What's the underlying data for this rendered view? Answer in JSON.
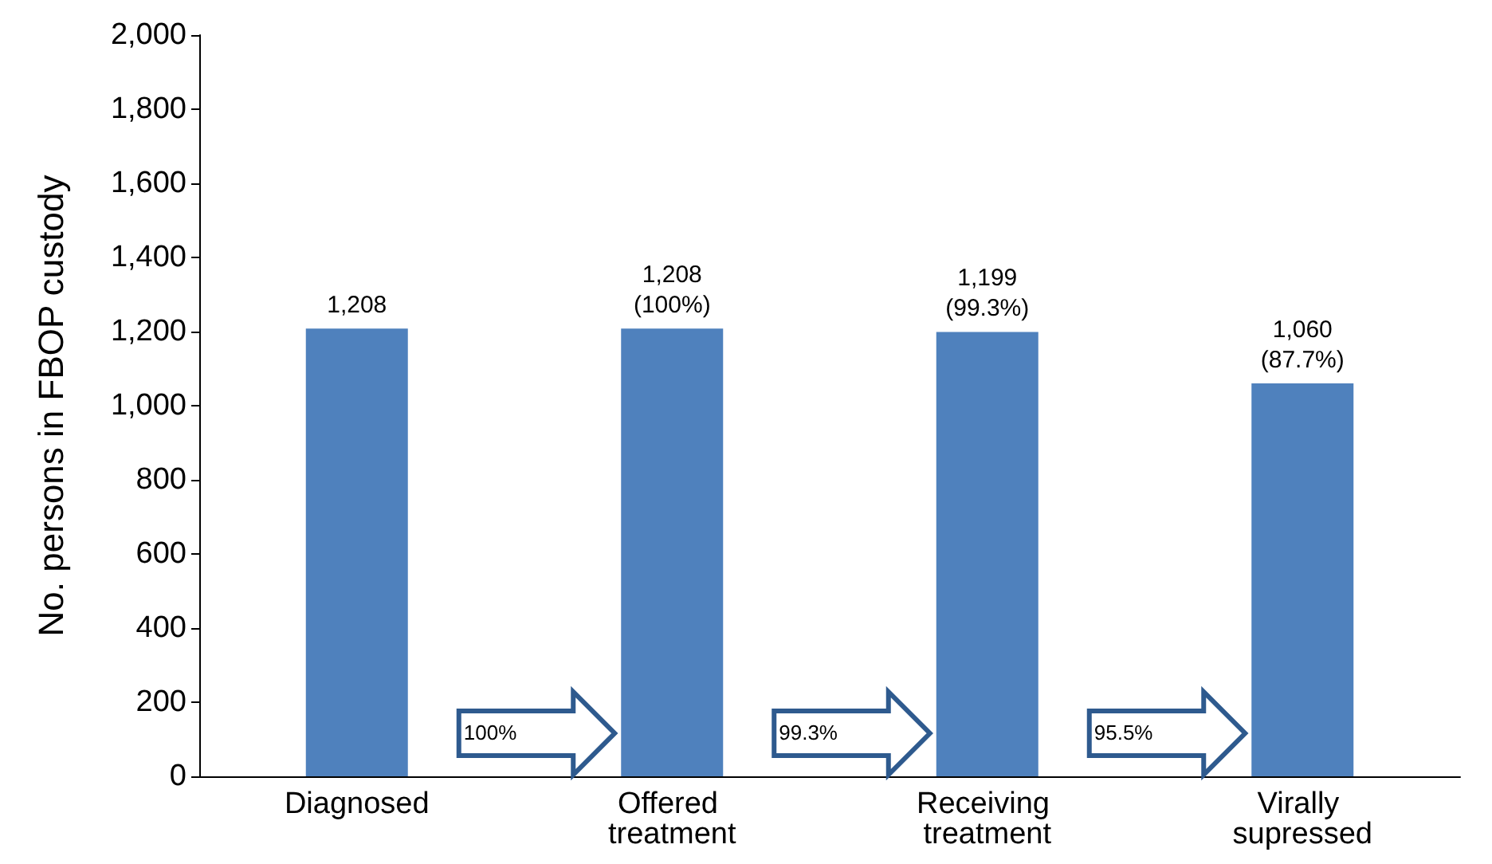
{
  "chart_data": {
    "type": "bar",
    "ylabel": "No. persons in FBOP custody",
    "categories": [
      "Diagnosed",
      "Offered treatment",
      "Receiving treatment",
      "Virally supressed"
    ],
    "values": [
      1208,
      1208,
      1199,
      1060
    ],
    "value_labels": [
      "1,208",
      "1,208\n(100%)",
      "1,199\n(99.3%)",
      "1,060\n(87.7%)"
    ],
    "color": "#4f81bd",
    "ylim": [
      0,
      2000
    ],
    "yticks": [
      {
        "value": 0,
        "label": "0"
      },
      {
        "value": 200,
        "label": "200"
      },
      {
        "value": 400,
        "label": "400"
      },
      {
        "value": 600,
        "label": "600"
      },
      {
        "value": 800,
        "label": "800"
      },
      {
        "value": 1000,
        "label": "1,000"
      },
      {
        "value": 1200,
        "label": "1,200"
      },
      {
        "value": 1400,
        "label": "1,400"
      },
      {
        "value": 1600,
        "label": "1,600"
      },
      {
        "value": 1800,
        "label": "1,800"
      },
      {
        "value": 2000,
        "label": "2,000"
      }
    ],
    "grid": false,
    "annotations": [
      "100%",
      "99.3%",
      "95.5%"
    ]
  }
}
